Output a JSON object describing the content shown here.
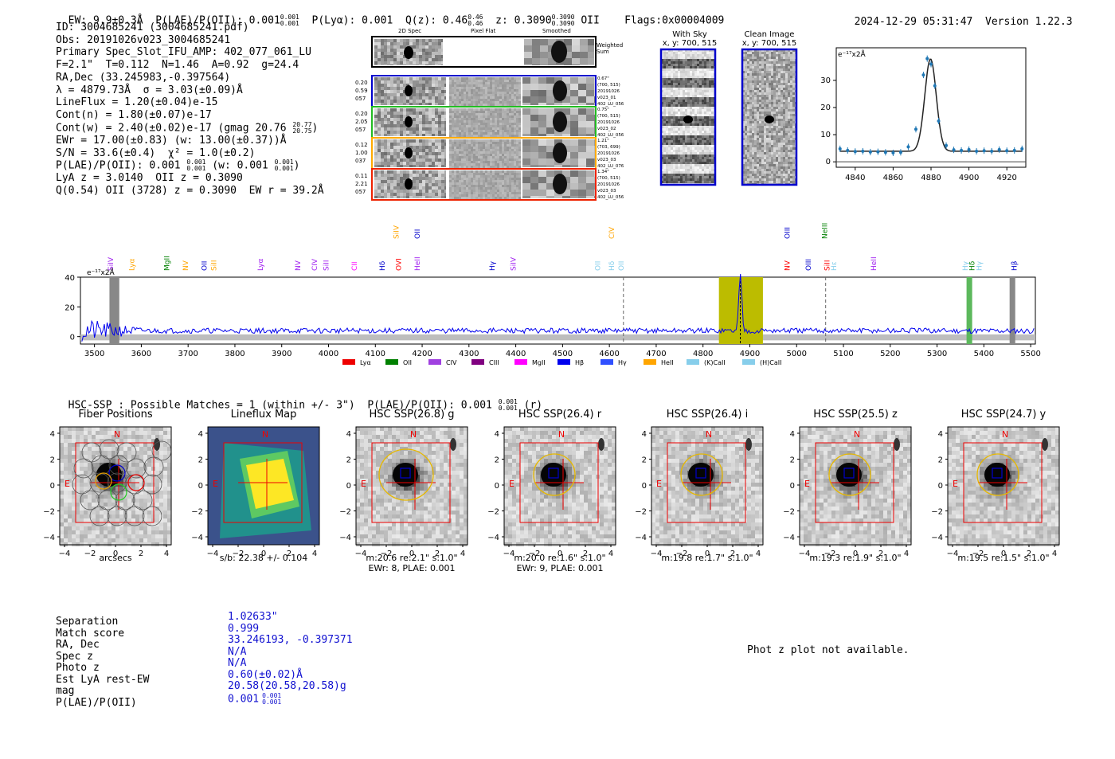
{
  "header": {
    "ew": "EW: 9.9±0.3Å",
    "plae_label": "P(LAE)/P(OII): 0.001",
    "plae_sup": "0.001",
    "plae_sub": "0.001",
    "plya": "P(Lyα): 0.001",
    "qz_label": "Q(z): 0.46",
    "qz_sup": "0.46",
    "qz_sub": "0.46",
    "z_label": "z: 0.3090",
    "z_sup": "0.3090",
    "z_sub": "0.3090",
    "z_line": "OII",
    "flags": "Flags:0x00004009",
    "datetime": "2024-12-29 05:31:47",
    "version": "Version 1.22.3"
  },
  "info": {
    "id": "ID: 3004685241 (3004685241.pdf)",
    "obs": "Obs: 20191026v023_3004685241",
    "primary": "Primary Spec_Slot_IFU_AMP: 402_077_061_LU",
    "params": "F=2.1\"  T=0.112  N=1.46  A=0.92  g=24.4",
    "radec": "RA,Dec (33.245983,-0.397564)",
    "lambda": "λ = 4879.73Å  σ = 3.03(±0.09)Å",
    "lineflux": "LineFlux = 1.20(±0.04)e-15",
    "contn": "Cont(n) = 1.80(±0.07)e-17",
    "contw": "Cont(w) = 2.40(±0.02)e-17 (gmag 20.76",
    "contw_sup": "20.77",
    "contw_sub": "20.75",
    "ewr": "EWr = 17.00(±0.83) (w: 13.00(±0.37))Å",
    "sn": "S/N = 33.6(±0.4)  χ² = 1.0(±0.2)",
    "plae": "P(LAE)/P(OII): 0.001",
    "plae_sup": "0.001",
    "plae_sub": "0.001",
    "plae_w": "(w: 0.001",
    "plae_w_sup": "0.001",
    "plae_w_sub": "0.001",
    "lya": "LyA z = 3.0140  OII z = 0.3090",
    "q": "Q(0.54) OII (3728) z = 0.3090  EW r = 39.2Å"
  },
  "cutouts": {
    "col_2d": "2D Spec",
    "col_flat": "Pixel Flat",
    "col_smooth": "Smoothed",
    "weighted": "Weighted Sum",
    "rows": [
      {
        "left": [
          "0.20",
          "0.59",
          "057"
        ],
        "right": [
          "0.67\"",
          "(700, 515)",
          "20191026",
          "v023_01",
          "402_LU_056"
        ],
        "color": "#0000cc"
      },
      {
        "left": [
          "0.20",
          "2.05",
          "057"
        ],
        "right": [
          "0.75\"",
          "(700, 515)",
          "20191026",
          "v023_02",
          "402_LU_056"
        ],
        "color": "#22bb22"
      },
      {
        "left": [
          "0.12",
          "1.00",
          "037"
        ],
        "right": [
          "1.21\"",
          "(703, 699)",
          "20191026",
          "v023_03",
          "402_LU_076"
        ],
        "color": "#ffaa00"
      },
      {
        "left": [
          "0.11",
          "2.21",
          "057"
        ],
        "right": [
          "1.34\"",
          "(700, 515)",
          "20191026",
          "v023_03",
          "402_LU_056"
        ],
        "color": "#ee2200"
      }
    ],
    "with_sky": "With Sky",
    "with_sky_xy": "x, y: 700, 515",
    "clean": "Clean Image",
    "clean_xy": "x, y: 700, 515"
  },
  "zoom_chart": {
    "unit": "e⁻¹⁷x2Å",
    "xticks": [
      "4840",
      "4860",
      "4880",
      "4900",
      "4920"
    ],
    "yticks": [
      "0",
      "10",
      "20",
      "30"
    ]
  },
  "spectrum": {
    "unit": "e⁻¹⁷x2Å",
    "yticks": [
      "40",
      "20",
      "0"
    ],
    "xticks": [
      "3500",
      "3600",
      "3700",
      "3800",
      "3900",
      "4000",
      "4100",
      "4200",
      "4300",
      "4400",
      "4500",
      "4600",
      "4700",
      "4800",
      "4900",
      "5000",
      "5100",
      "5200",
      "5300",
      "5400",
      "5500"
    ],
    "line_labels": [
      {
        "t": "SiIV",
        "x": 3540,
        "c": "#a020f0",
        "row": 1
      },
      {
        "t": "Lyα",
        "x": 3585,
        "c": "#ffa500",
        "row": 1
      },
      {
        "t": "MgII",
        "x": 3660,
        "c": "#008000",
        "row": 1
      },
      {
        "t": "NV",
        "x": 3700,
        "c": "#ffa500",
        "row": 1
      },
      {
        "t": "OII",
        "x": 3740,
        "c": "#0000cc",
        "row": 1
      },
      {
        "t": "SiII",
        "x": 3760,
        "c": "#ffa500",
        "row": 1
      },
      {
        "t": "Lyα",
        "x": 3860,
        "c": "#a020f0",
        "row": 1
      },
      {
        "t": "NV",
        "x": 3940,
        "c": "#a020f0",
        "row": 1
      },
      {
        "t": "CIV",
        "x": 3975,
        "c": "#a020f0",
        "row": 1
      },
      {
        "t": "SiII",
        "x": 4000,
        "c": "#a020f0",
        "row": 1
      },
      {
        "t": "CII",
        "x": 4060,
        "c": "#ff00ff",
        "row": 1
      },
      {
        "t": "Hδ",
        "x": 4120,
        "c": "#0000cc",
        "row": 1
      },
      {
        "t": "OVI",
        "x": 4155,
        "c": "#ff0000",
        "row": 1
      },
      {
        "t": "HeII",
        "x": 4195,
        "c": "#a020f0",
        "row": 1
      },
      {
        "t": "SiIV",
        "x": 4150,
        "c": "#ffa500",
        "row": 0
      },
      {
        "t": "OII",
        "x": 4195,
        "c": "#0000cc",
        "row": 0
      },
      {
        "t": "Hγ",
        "x": 4355,
        "c": "#0000cc",
        "row": 1
      },
      {
        "t": "SiIV",
        "x": 4400,
        "c": "#a020f0",
        "row": 1
      },
      {
        "t": "CIV",
        "x": 4610,
        "c": "#ffa500",
        "row": 0
      },
      {
        "t": "OII",
        "x": 4580,
        "c": "#87ceeb",
        "row": 1
      },
      {
        "t": "Hδ",
        "x": 4610,
        "c": "#87ceeb",
        "row": 1
      },
      {
        "t": "OII",
        "x": 4630,
        "c": "#87ceeb",
        "row": 1
      },
      {
        "t": "OIII",
        "x": 4985,
        "c": "#0000cc",
        "row": 0
      },
      {
        "t": "NV",
        "x": 4985,
        "c": "#ff0000",
        "row": 1
      },
      {
        "t": "OIII",
        "x": 5030,
        "c": "#0000cc",
        "row": 1
      },
      {
        "t": "SiII",
        "x": 5070,
        "c": "#ff0000",
        "row": 1
      },
      {
        "t": "Hε",
        "x": 5085,
        "c": "#87ceeb",
        "row": 1
      },
      {
        "t": "NeIII",
        "x": 5065,
        "c": "#008000",
        "row": 0
      },
      {
        "t": "HeII",
        "x": 5170,
        "c": "#a020f0",
        "row": 1
      },
      {
        "t": "Hγ",
        "x": 5365,
        "c": "#87ceeb",
        "row": 1
      },
      {
        "t": "Hδ",
        "x": 5380,
        "c": "#008000",
        "row": 1
      },
      {
        "t": "Hγ",
        "x": 5395,
        "c": "#87ceeb",
        "row": 1
      },
      {
        "t": "Hβ",
        "x": 5470,
        "c": "#0000cc",
        "row": 1
      }
    ],
    "legend": [
      {
        "t": "Lyα",
        "c": "#ee0000"
      },
      {
        "t": "OII",
        "c": "#008000"
      },
      {
        "t": "CIV",
        "c": "#a040e0"
      },
      {
        "t": "CIII",
        "c": "#800080"
      },
      {
        "t": "MgII",
        "c": "#ff00ff"
      },
      {
        "t": "Hβ",
        "c": "#0000ee"
      },
      {
        "t": "Hγ",
        "c": "#3050ff"
      },
      {
        "t": "HeII",
        "c": "#ffa500"
      },
      {
        "t": "(K)CaII",
        "c": "#87ceeb"
      },
      {
        "t": "(H)CaII",
        "c": "#87ceeb"
      }
    ]
  },
  "hsc": {
    "summary": "HSC-SSP : Possible Matches = 1 (within +/- 3\")  P(LAE)/P(OII): 0.001",
    "summary_sup": "0.001",
    "summary_sub": "0.001",
    "summary_tail": "(r)",
    "panels": [
      {
        "title": "Fiber Positions",
        "caption1": "arcsecs",
        "caption2": ""
      },
      {
        "title": "Lineflux Map",
        "caption1": "s/b: 22.38 +/- 0.104",
        "caption2": ""
      },
      {
        "title": "HSC SSP(26.8) g",
        "caption1": "m:20.6  re:2.1\"  s:1.0\"",
        "caption2": "EWr: 8, PLAE: 0.001"
      },
      {
        "title": "HSC SSP(26.4) r",
        "caption1": "m:20.0  re:1.6\"  s:1.0\"",
        "caption2": "EWr: 9, PLAE: 0.001"
      },
      {
        "title": "HSC SSP(26.4) i",
        "caption1": "m:19.8  re:1.7\"  s:1.0\"",
        "caption2": ""
      },
      {
        "title": "HSC SSP(25.5) z",
        "caption1": "m:19.3  re:1.9\"  s:1.0\"",
        "caption2": ""
      },
      {
        "title": "HSC SSP(24.7) y",
        "caption1": "m:19.5  re:1.5\"  s:1.0\"",
        "caption2": ""
      }
    ],
    "xticks": [
      "−4",
      "−2",
      "0",
      "2",
      "4"
    ],
    "yticks": [
      "4",
      "2",
      "0",
      "−2",
      "−4"
    ],
    "n": "N",
    "e": "E"
  },
  "match_table": {
    "keys": [
      "Separation",
      "Match score",
      "RA, Dec",
      "Spec z",
      "Photo z",
      "Est LyA rest-EW",
      "mag",
      "P(LAE)/P(OII)"
    ],
    "values": [
      "1.02633\"",
      "0.999",
      "33.246193, -0.397371",
      "N/A",
      "N/A",
      "0.60(±0.02)Å",
      "20.58(20.58,20.58)g",
      "0.001"
    ],
    "plae_sup": "0.001",
    "plae_sub": "0.001",
    "photz_note": "Phot z plot not available."
  },
  "chart_data": [
    {
      "type": "line",
      "title": "",
      "xlabel": "",
      "ylabel": "e⁻¹⁷x2Å",
      "xlim": [
        4830,
        4930
      ],
      "ylim": [
        -2,
        42
      ],
      "series": [
        {
          "x": [
            4832,
            4836,
            4840,
            4844,
            4848,
            4852,
            4856,
            4860,
            4864,
            4868,
            4872,
            4876,
            4878,
            4880,
            4882,
            4884,
            4888,
            4892,
            4896,
            4900,
            4904,
            4908,
            4912,
            4916,
            4920,
            4924,
            4928
          ],
          "y": [
            4.8,
            4.2,
            3.8,
            3.9,
            3.6,
            3.7,
            3.5,
            3.3,
            3.5,
            5.5,
            12,
            32,
            38,
            36,
            28,
            15,
            6,
            4.4,
            4.2,
            4.5,
            3.9,
            4.1,
            3.9,
            4.5,
            4.1,
            4.2,
            4.8
          ]
        }
      ],
      "xticks": [
        4840,
        4860,
        4880,
        4900,
        4920
      ],
      "yticks": [
        0,
        10,
        20,
        30
      ],
      "fit_center": 4879.73,
      "fit_sigma": 3.03
    },
    {
      "type": "line",
      "title": "",
      "xlabel": "",
      "ylabel": "e⁻¹⁷x2Å",
      "xlim": [
        3470,
        5510
      ],
      "ylim": [
        -5,
        40
      ],
      "emission_peak": {
        "x": 4879.73,
        "y": 38
      },
      "xticks": [
        3500,
        3600,
        3700,
        3800,
        3900,
        4000,
        4100,
        4200,
        4300,
        4400,
        4500,
        4600,
        4700,
        4800,
        4900,
        5000,
        5100,
        5200,
        5300,
        5400,
        5500
      ],
      "yticks": [
        0,
        20,
        40
      ]
    }
  ]
}
